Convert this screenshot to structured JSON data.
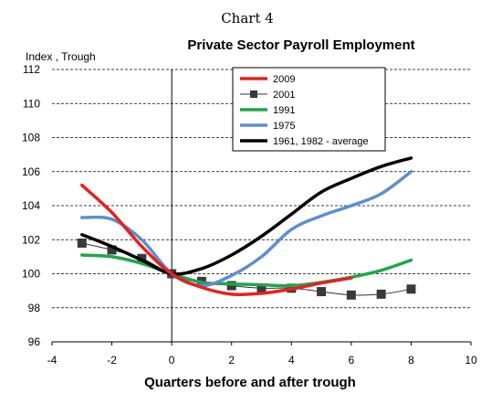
{
  "caption": "Chart 4",
  "chart_data": {
    "type": "line",
    "title": "Private Sector Payroll Employment",
    "ylabel": "Index , Trough",
    "xlabel": "Quarters before and after trough",
    "xlim": [
      -4,
      10
    ],
    "ylim": [
      96,
      112
    ],
    "xticks": [
      -4,
      -2,
      0,
      2,
      4,
      6,
      8,
      10
    ],
    "yticks": [
      96,
      98,
      100,
      102,
      104,
      106,
      108,
      110,
      112
    ],
    "grid": "horizontal dashed",
    "legend_position": "top-center",
    "series": [
      {
        "name": "2009",
        "color": "#e8201e",
        "width": 3.5,
        "marker": "none",
        "x": [
          -3,
          -2,
          -1,
          0,
          1,
          2,
          3,
          4,
          5,
          6
        ],
        "y": [
          105.2,
          103.6,
          101.6,
          100.0,
          99.2,
          98.8,
          98.85,
          99.1,
          99.45,
          99.75
        ]
      },
      {
        "name": "2001",
        "color": "#333333",
        "width": 1,
        "marker": "square",
        "x": [
          -3,
          -2,
          -1,
          0,
          1,
          2,
          3,
          4,
          5,
          6,
          7,
          8
        ],
        "y": [
          101.8,
          101.4,
          100.9,
          100.0,
          99.55,
          99.3,
          99.15,
          99.15,
          98.95,
          98.75,
          98.8,
          99.1
        ]
      },
      {
        "name": "1991",
        "color": "#21a64a",
        "width": 3.5,
        "marker": "none",
        "x": [
          -3,
          -2,
          -1,
          0,
          1,
          2,
          3,
          4,
          5,
          6,
          7,
          8
        ],
        "y": [
          101.1,
          101.0,
          100.6,
          100.0,
          99.5,
          99.4,
          99.35,
          99.3,
          99.5,
          99.8,
          100.2,
          100.8
        ]
      },
      {
        "name": "1975",
        "color": "#5b8fd0",
        "width": 3.5,
        "marker": "none",
        "x": [
          -3,
          -2,
          -1,
          0,
          1,
          2,
          3,
          4,
          5,
          6,
          7,
          8
        ],
        "y": [
          103.3,
          103.2,
          102.0,
          100.0,
          99.3,
          99.9,
          101.0,
          102.6,
          103.4,
          104.0,
          104.7,
          106.0
        ]
      },
      {
        "name": "1961, 1982 - average",
        "color": "#000000",
        "width": 3.5,
        "marker": "none",
        "x": [
          -3,
          -2,
          -1,
          0,
          1,
          2,
          3,
          4,
          5,
          6,
          7,
          8
        ],
        "y": [
          102.3,
          101.6,
          100.8,
          100.0,
          100.3,
          101.1,
          102.2,
          103.5,
          104.8,
          105.6,
          106.3,
          106.8
        ]
      }
    ]
  }
}
